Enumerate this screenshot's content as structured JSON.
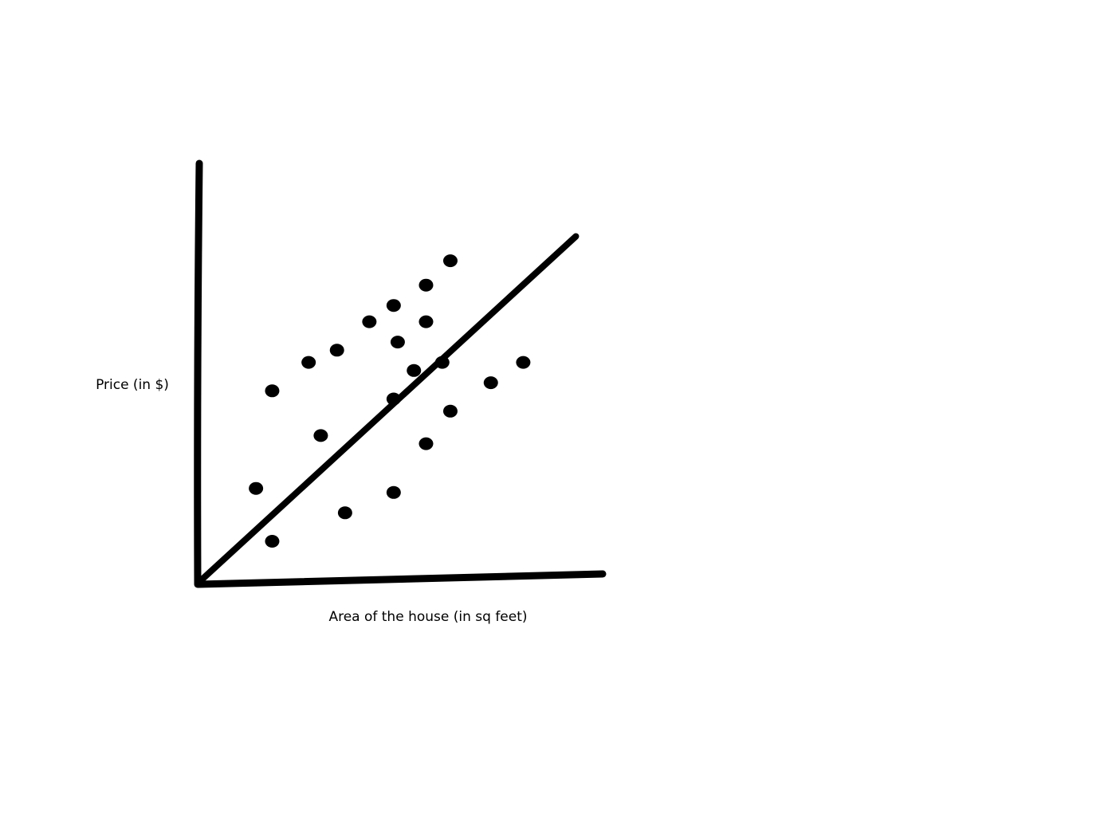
{
  "chart_data": {
    "type": "scatter",
    "xlabel": "Area of the house (in sq feet)",
    "ylabel": "Price (in $)",
    "grid": false,
    "ticks_shown": false,
    "xlim": [
      0,
      100
    ],
    "ylim": [
      0,
      100
    ],
    "points": [
      {
        "x": 14,
        "y": 23
      },
      {
        "x": 18,
        "y": 10
      },
      {
        "x": 18,
        "y": 47
      },
      {
        "x": 27,
        "y": 54
      },
      {
        "x": 30,
        "y": 36
      },
      {
        "x": 34,
        "y": 57
      },
      {
        "x": 36,
        "y": 17
      },
      {
        "x": 42,
        "y": 64
      },
      {
        "x": 48,
        "y": 68
      },
      {
        "x": 48,
        "y": 22
      },
      {
        "x": 48,
        "y": 45
      },
      {
        "x": 49,
        "y": 59
      },
      {
        "x": 53,
        "y": 52
      },
      {
        "x": 56,
        "y": 64
      },
      {
        "x": 56,
        "y": 34
      },
      {
        "x": 56,
        "y": 73
      },
      {
        "x": 60,
        "y": 54
      },
      {
        "x": 62,
        "y": 42
      },
      {
        "x": 62,
        "y": 79
      },
      {
        "x": 72,
        "y": 49
      },
      {
        "x": 80,
        "y": 54
      }
    ],
    "trend_line": {
      "x": [
        0,
        93
      ],
      "y": [
        0,
        85
      ]
    },
    "color": "#000000"
  }
}
